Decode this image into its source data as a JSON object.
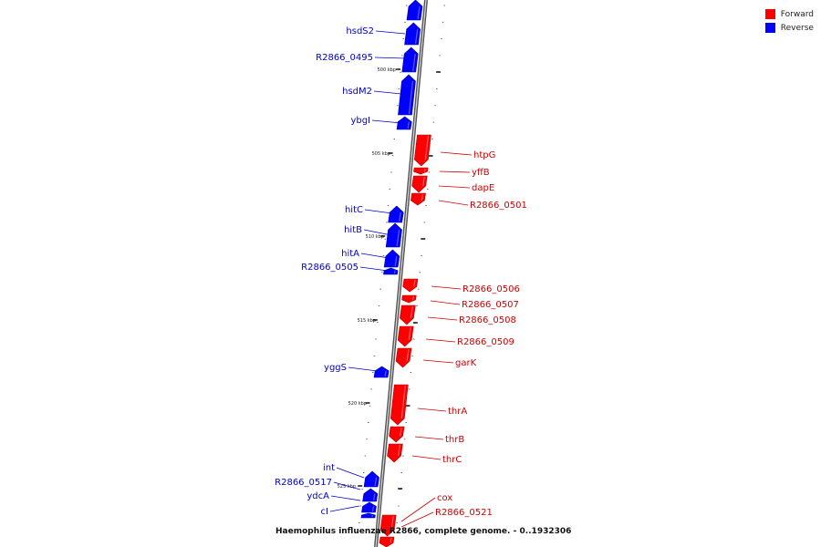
{
  "caption": "Haemophilus influenzae R2866, complete genome. - 0..1932306",
  "legend": {
    "forward": {
      "label": "Forward",
      "color": "#ff0000"
    },
    "reverse": {
      "label": "Reverse",
      "color": "#0000ff"
    }
  },
  "ticks": [
    "500 kbp",
    "505 kbp",
    "510 kbp",
    "515 kbp",
    "520 kbp",
    "525 kbp"
  ],
  "reverse_genes": [
    "hsdS2",
    "R2866_0495",
    "hsdM2",
    "ybgI",
    "hitC",
    "hitB",
    "hitA",
    "R2866_0505",
    "yggS",
    "int",
    "R2866_0517",
    "ydcA",
    "cI"
  ],
  "forward_genes": [
    "htpG",
    "yffB",
    "dapE",
    "R2866_0501",
    "R2866_0506",
    "R2866_0507",
    "R2866_0508",
    "R2866_0509",
    "garK",
    "thrA",
    "thrB",
    "thrC",
    "cox",
    "R2866_0521"
  ]
}
